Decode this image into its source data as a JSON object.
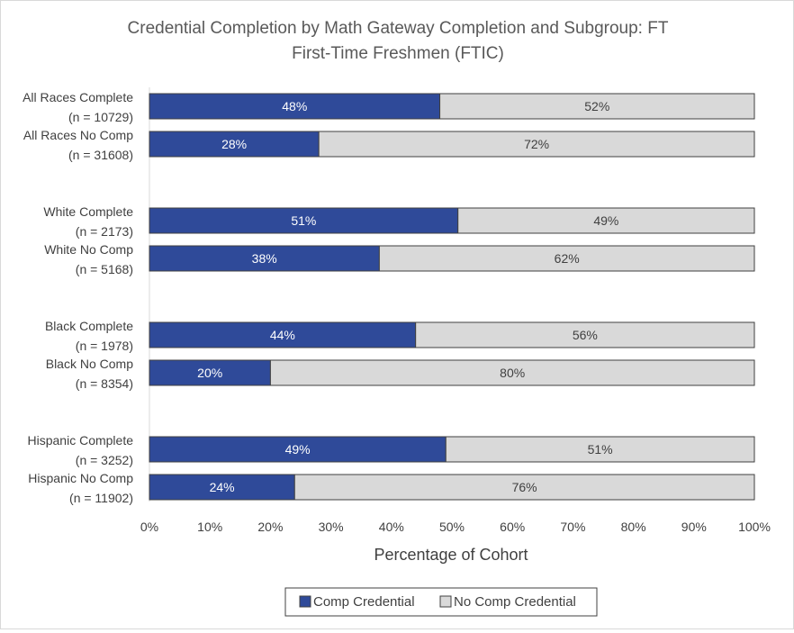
{
  "chart_data": {
    "type": "bar",
    "orientation": "horizontal",
    "stacked": true,
    "title_lines": [
      "Credential Completion by Math Gateway Completion and Subgroup: FT",
      "First-Time Freshmen (FTIC)"
    ],
    "xlabel": "Percentage of Cohort",
    "ylabel": "",
    "xlim": [
      0,
      100
    ],
    "x_ticks": [
      "0%",
      "10%",
      "20%",
      "30%",
      "40%",
      "50%",
      "60%",
      "70%",
      "80%",
      "90%",
      "100%"
    ],
    "grid": false,
    "legend_position": "bottom",
    "categories": [
      {
        "line1": "All Races Complete",
        "line2": "(n = 10729)",
        "group": 0
      },
      {
        "line1": "All Races No Comp",
        "line2": "(n = 31608)",
        "group": 0
      },
      {
        "line1": "White Complete",
        "line2": "(n = 2173)",
        "group": 1
      },
      {
        "line1": "White No Comp",
        "line2": "(n = 5168)",
        "group": 1
      },
      {
        "line1": "Black Complete",
        "line2": "(n = 1978)",
        "group": 2
      },
      {
        "line1": "Black No Comp",
        "line2": "(n = 8354)",
        "group": 2
      },
      {
        "line1": "Hispanic Complete",
        "line2": "(n = 3252)",
        "group": 3
      },
      {
        "line1": "Hispanic No Comp",
        "line2": "(n = 11902)",
        "group": 3
      }
    ],
    "series": [
      {
        "name": "Comp Credential",
        "color": "#2F4A99",
        "label_color": "#ffffff",
        "values": [
          48,
          28,
          51,
          38,
          44,
          20,
          49,
          24
        ],
        "labels": [
          "48%",
          "28%",
          "51%",
          "38%",
          "44%",
          "20%",
          "49%",
          "24%"
        ]
      },
      {
        "name": "No Comp Credential",
        "color": "#D9D9D9",
        "label_color": "#404040",
        "values": [
          52,
          72,
          49,
          62,
          56,
          80,
          51,
          76
        ],
        "labels": [
          "52%",
          "72%",
          "49%",
          "62%",
          "56%",
          "80%",
          "51%",
          "76%"
        ]
      }
    ]
  }
}
